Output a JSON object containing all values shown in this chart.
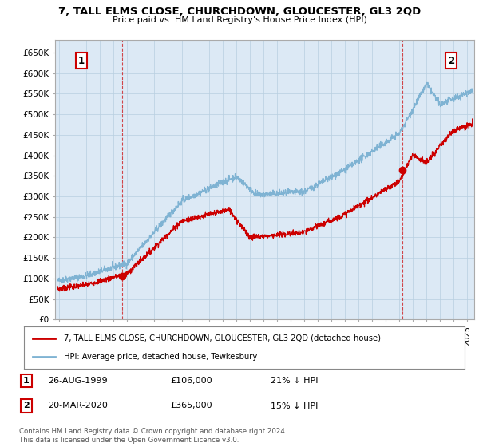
{
  "title": "7, TALL ELMS CLOSE, CHURCHDOWN, GLOUCESTER, GL3 2QD",
  "subtitle": "Price paid vs. HM Land Registry's House Price Index (HPI)",
  "ylabel_ticks": [
    "£0",
    "£50K",
    "£100K",
    "£150K",
    "£200K",
    "£250K",
    "£300K",
    "£350K",
    "£400K",
    "£450K",
    "£500K",
    "£550K",
    "£600K",
    "£650K"
  ],
  "ytick_values": [
    0,
    50000,
    100000,
    150000,
    200000,
    250000,
    300000,
    350000,
    400000,
    450000,
    500000,
    550000,
    600000,
    650000
  ],
  "ylim": [
    0,
    680000
  ],
  "xlim_start": 1994.7,
  "xlim_end": 2025.5,
  "hpi_color": "#7fb3d3",
  "price_color": "#cc0000",
  "marker1_year": 1999.65,
  "marker1_price": 106000,
  "marker2_year": 2020.22,
  "marker2_price": 365000,
  "legend_label1": "7, TALL ELMS CLOSE, CHURCHDOWN, GLOUCESTER, GL3 2QD (detached house)",
  "legend_label2": "HPI: Average price, detached house, Tewkesbury",
  "footer": "Contains HM Land Registry data © Crown copyright and database right 2024.\nThis data is licensed under the Open Government Licence v3.0.",
  "background_color": "#ffffff",
  "plot_bg_color": "#dce9f5",
  "grid_color": "#b8cfe0"
}
